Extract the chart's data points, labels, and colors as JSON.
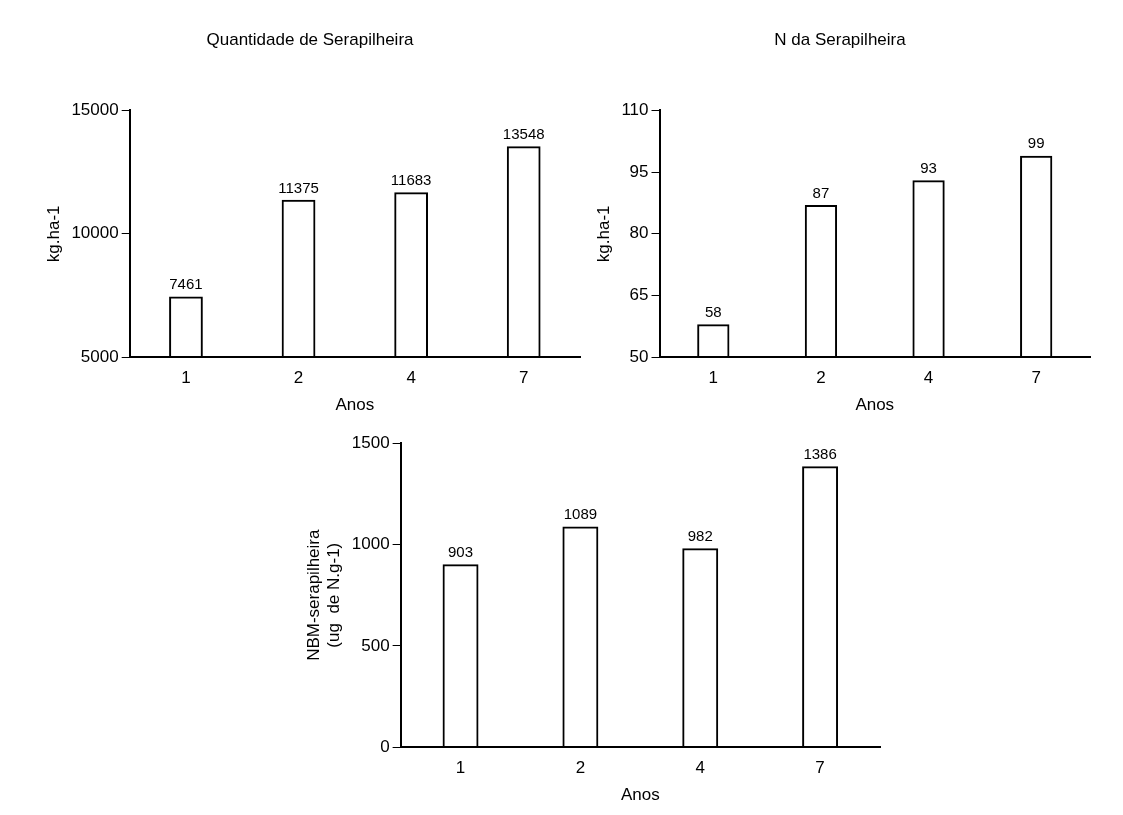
{
  "chart_data": [
    {
      "type": "bar",
      "title": "Quantidade de Serapilheira",
      "xlabel": "Anos",
      "ylabel": "kg.ha-1",
      "categories": [
        "1",
        "2",
        "4",
        "7"
      ],
      "values": [
        7461,
        11375,
        11683,
        13548
      ],
      "color": "#000000",
      "ylim": [
        5000,
        15000
      ],
      "yticks": [
        5000,
        10000,
        15000
      ],
      "grid": false,
      "legend": false,
      "data_labels": true
    },
    {
      "type": "bar",
      "title": "N da Serapilheira",
      "xlabel": "Anos",
      "ylabel": "kg.ha-1",
      "categories": [
        "1",
        "2",
        "4",
        "7"
      ],
      "values": [
        58,
        87,
        93,
        99
      ],
      "color": "#000000",
      "ylim": [
        50,
        110
      ],
      "yticks": [
        50,
        65,
        80,
        95,
        110
      ],
      "grid": false,
      "legend": false,
      "data_labels": true
    },
    {
      "type": "bar",
      "xlabel": "Anos",
      "ylabel": "NBM-serapilheira\n(ug  de N.g-1)",
      "categories": [
        "1",
        "2",
        "4",
        "7"
      ],
      "values": [
        903,
        1089,
        982,
        1386
      ],
      "color": "#000000",
      "ylim": [
        0,
        1500
      ],
      "yticks": [
        0,
        500,
        1000,
        1500
      ],
      "grid": false,
      "legend": false,
      "data_labels": true
    }
  ]
}
